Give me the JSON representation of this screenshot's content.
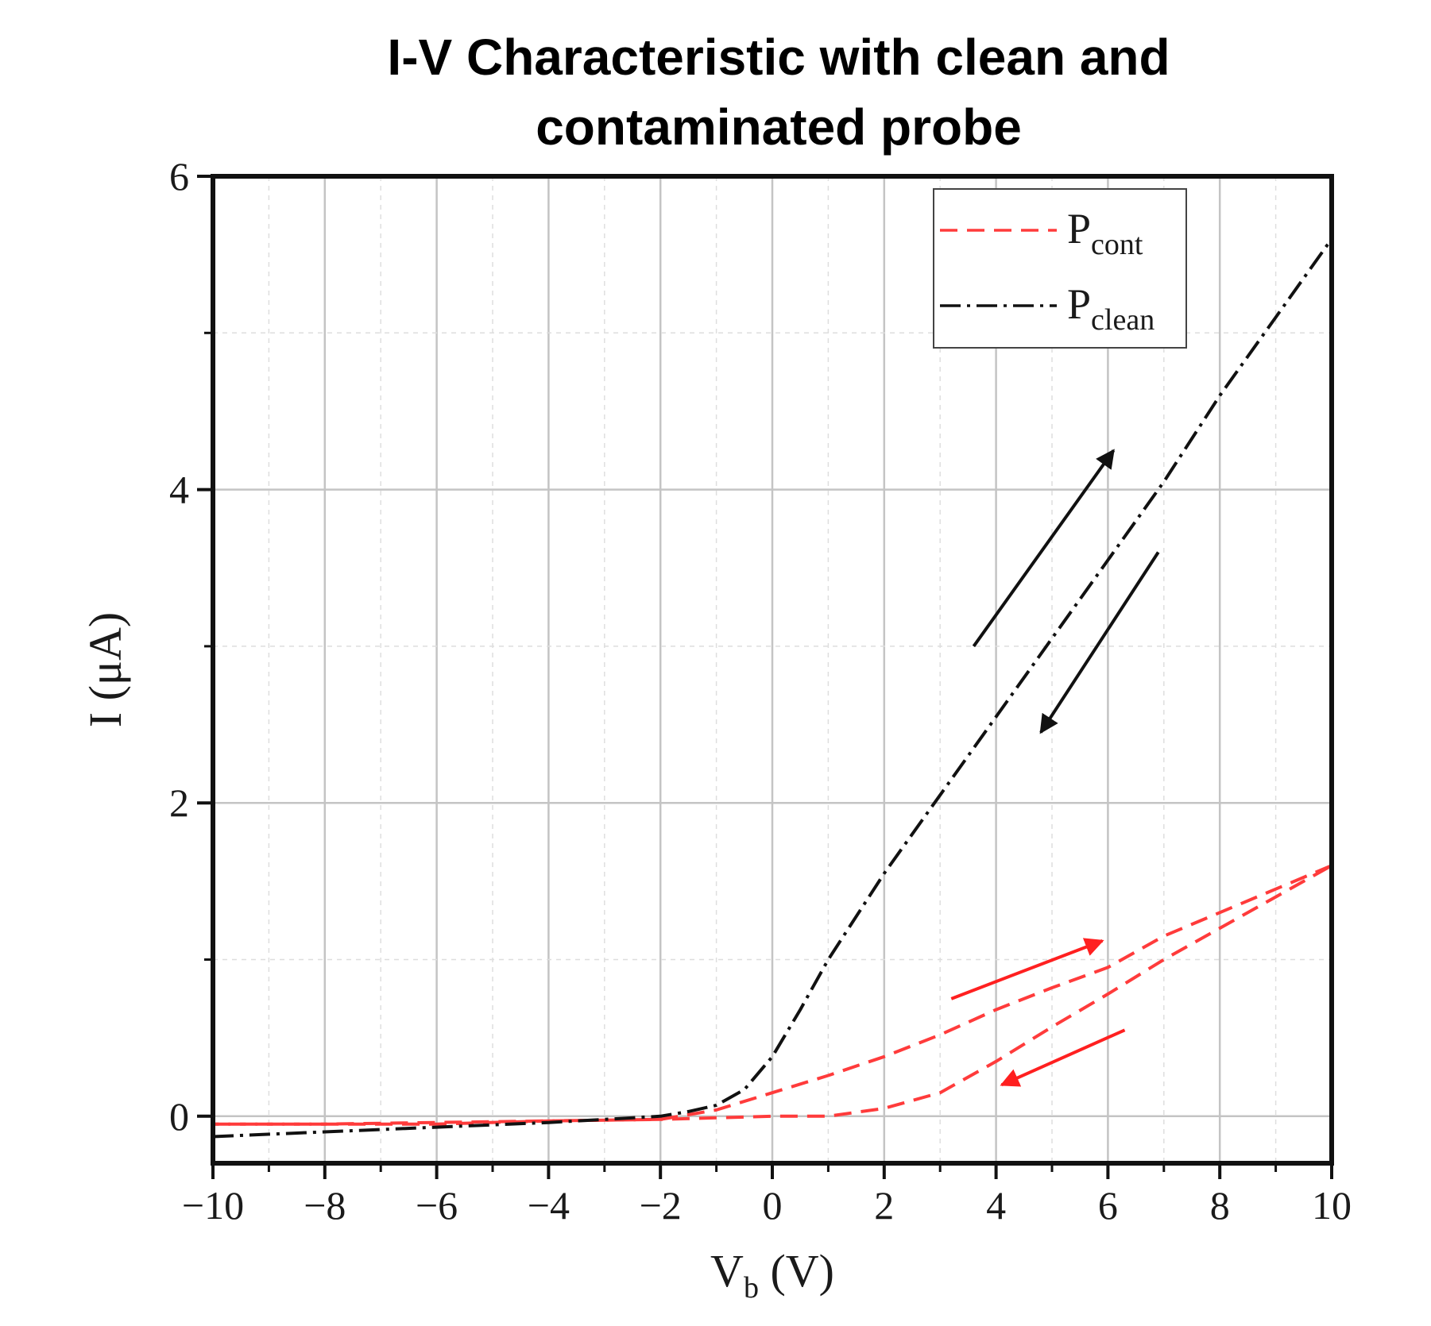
{
  "chart_data": {
    "type": "line",
    "title": [
      "I-V Characteristic with clean and",
      "contaminated probe"
    ],
    "xlabel": {
      "main": "V",
      "sub": "b",
      "unit": " (V)"
    },
    "ylabel": "I (μA)",
    "xlim": [
      -10,
      10
    ],
    "ylim": [
      -0.3,
      6
    ],
    "xticks": [
      -10,
      -8,
      -6,
      -4,
      -2,
      0,
      2,
      4,
      6,
      8,
      10
    ],
    "xtick_labels": [
      "−10",
      "−8",
      "−6",
      "−4",
      "−2",
      "0",
      "2",
      "4",
      "6",
      "8",
      "10"
    ],
    "yticks": [
      0,
      2,
      4,
      6
    ],
    "ytick_labels": [
      "0",
      "2",
      "4",
      "6"
    ],
    "grid": true,
    "legend_position": "top-right",
    "series": [
      {
        "name": "P",
        "name_sub": "cont",
        "color": "#ff3b3b",
        "style": "dashed",
        "branches": [
          {
            "x": [
              -10,
              -8,
              -6,
              -4,
              -2,
              -1,
              0,
              1,
              2,
              3,
              4,
              5,
              6,
              7,
              8,
              9,
              10
            ],
            "y": [
              -0.05,
              -0.05,
              -0.05,
              -0.03,
              -0.02,
              -0.01,
              0.0,
              0.0,
              0.05,
              0.15,
              0.35,
              0.57,
              0.78,
              1.0,
              1.2,
              1.4,
              1.6
            ]
          },
          {
            "x": [
              10,
              9,
              8,
              7,
              6,
              5,
              4,
              3,
              2,
              1,
              0,
              -1,
              -2,
              -4,
              -6,
              -8,
              -10
            ],
            "y": [
              1.6,
              1.45,
              1.3,
              1.15,
              0.95,
              0.82,
              0.68,
              0.52,
              0.38,
              0.26,
              0.15,
              0.04,
              -0.02,
              -0.03,
              -0.04,
              -0.05,
              -0.05
            ]
          }
        ]
      },
      {
        "name": "P",
        "name_sub": "clean",
        "color": "#111111",
        "style": "dash-dot",
        "branches": [
          {
            "x": [
              -10,
              -8,
              -6,
              -4,
              -3,
              -2,
              -1.5,
              -1,
              -0.5,
              0,
              0.5,
              1,
              2,
              3,
              4,
              5,
              6,
              7,
              8,
              9,
              10
            ],
            "y": [
              -0.13,
              -0.1,
              -0.07,
              -0.04,
              -0.02,
              0.0,
              0.03,
              0.07,
              0.17,
              0.38,
              0.68,
              1.0,
              1.55,
              2.05,
              2.55,
              3.05,
              3.55,
              4.05,
              4.6,
              5.1,
              5.6
            ]
          }
        ]
      }
    ],
    "annotations": [
      {
        "type": "arrow",
        "color": "#111111",
        "from": [
          3.6,
          3.0
        ],
        "to": [
          6.1,
          4.25
        ]
      },
      {
        "type": "arrow",
        "color": "#111111",
        "from": [
          6.9,
          3.6
        ],
        "to": [
          4.8,
          2.45
        ]
      },
      {
        "type": "arrow",
        "color": "#ff2020",
        "from": [
          3.2,
          0.75
        ],
        "to": [
          5.9,
          1.12
        ]
      },
      {
        "type": "arrow",
        "color": "#ff2020",
        "from": [
          6.3,
          0.55
        ],
        "to": [
          4.1,
          0.2
        ]
      }
    ]
  }
}
